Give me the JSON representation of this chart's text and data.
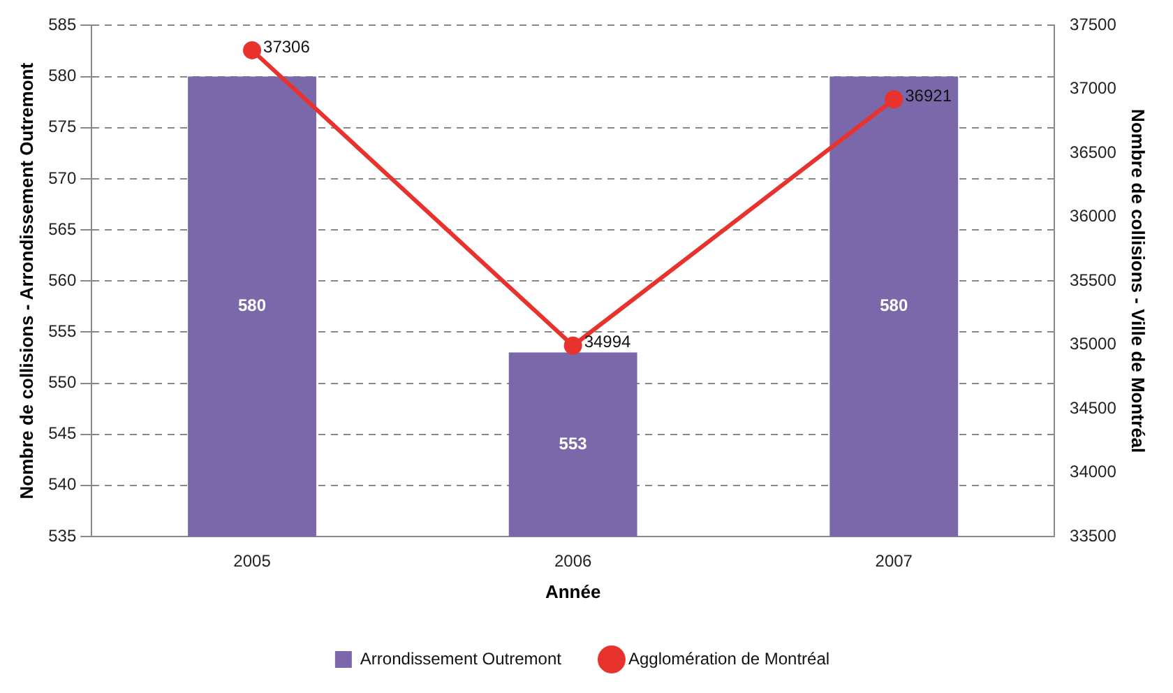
{
  "chart_data": {
    "type": "bar",
    "xlabel": "Année",
    "ylabel": "Nombre de collisions - Arrondissement Outremont",
    "y2label": "Nombre de collisions - Ville de Montréal",
    "categories": [
      "2005",
      "2006",
      "2007"
    ],
    "series": [
      {
        "name": "Arrondissement Outremont",
        "color": "#7b68aa",
        "values": [
          580,
          553,
          580
        ]
      },
      {
        "name": "Agglomération de Montréal",
        "type": "line",
        "axis": "y2",
        "color": "#e8322e",
        "values": [
          37306,
          34994,
          36921
        ],
        "marker": "circle"
      }
    ],
    "ylim": [
      535,
      585
    ],
    "yticks": [
      535,
      540,
      545,
      550,
      555,
      560,
      565,
      570,
      575,
      580,
      585
    ],
    "y2lim": [
      33500,
      37500
    ],
    "y2ticks": [
      33500,
      34000,
      34500,
      35000,
      35500,
      36000,
      36500,
      37000,
      37500
    ],
    "grid": "y",
    "legend": "bottom",
    "data_labels": true
  }
}
